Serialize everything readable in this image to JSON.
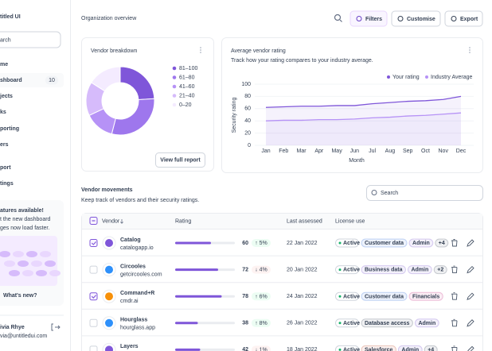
{
  "sidebar": {
    "brand": "titled UI",
    "search": "arch",
    "nav": [
      {
        "label": "me"
      },
      {
        "label": "shboard",
        "badge": "10"
      },
      {
        "label": "jects"
      },
      {
        "label": "ks"
      },
      {
        "label": "porting"
      },
      {
        "label": "ers"
      }
    ],
    "footer_nav": [
      "port",
      "tings"
    ],
    "promo": {
      "title": "atures available!",
      "lines": [
        "t the new dashboard",
        "ges now load faster."
      ],
      "link": "What's new?"
    },
    "user": {
      "name": "ivia Rhye",
      "email": "via@untitledui.com"
    }
  },
  "header": {
    "title": "Organization overview",
    "buttons": [
      "Filters",
      "Customise",
      "Export"
    ]
  },
  "vendor_breakdown": {
    "title": "Vendor breakdown",
    "button": "View full report",
    "chart": {
      "type": "pie",
      "categories": [
        "81–100",
        "61–80",
        "41–60",
        "21–40",
        "0–20"
      ],
      "values": [
        24,
        30,
        14,
        16,
        16
      ],
      "colors": [
        "#7f56d9",
        "#9e77ed",
        "#b692f6",
        "#d6bbfb",
        "#f4ebff"
      ]
    }
  },
  "rating_chart": {
    "title": "Average vendor rating",
    "subtitle": "Track how your rating compares to your industry average.",
    "chart": {
      "type": "line",
      "categories": [
        "Jan",
        "Feb",
        "Mar",
        "Apr",
        "May",
        "Jun",
        "Jul",
        "Aug",
        "Sep",
        "Oct",
        "Nov",
        "Dec"
      ],
      "series": [
        {
          "name": "Your rating",
          "color": "#7f56d9",
          "values": [
            62,
            63,
            64,
            64,
            65,
            65,
            68,
            70,
            72,
            73,
            75,
            80
          ]
        },
        {
          "name": "Industry Average",
          "color": "#b692f6",
          "values": [
            40,
            41,
            41,
            42,
            42,
            43,
            45,
            46,
            48,
            49,
            51,
            53
          ]
        }
      ],
      "ylim": [
        0,
        100
      ],
      "yticks": [
        0,
        20,
        40,
        60,
        80,
        100
      ],
      "ylabel": "Security rating",
      "xlabel": "Month",
      "grid": true
    }
  },
  "table": {
    "title": "Vendor movements",
    "subtitle": "Keep track of vendors and their security ratings.",
    "search": "Search",
    "columns": [
      "Vendor",
      "Rating",
      "Last assessed",
      "License use"
    ],
    "rows": [
      {
        "checked": true,
        "name": "Catalog",
        "domain": "catalogapp.io",
        "rating": 60,
        "change": "↑ 5%",
        "date": "22 Jan 2022",
        "status": "Active",
        "tags": [
          {
            "label": "Customer data",
            "color": "#175cd3"
          },
          {
            "label": "Admin",
            "color": "#6941c6"
          },
          {
            "label": "+4",
            "color": "#344054"
          }
        ]
      },
      {
        "checked": false,
        "name": "Circooles",
        "domain": "getcircooles.com",
        "rating": 72,
        "change": "↓ 4%",
        "date": "20 Jan 2022",
        "status": "Active",
        "tags": [
          {
            "label": "Business data",
            "color": "#6941c6"
          },
          {
            "label": "Admin",
            "color": "#6941c6"
          },
          {
            "label": "+2",
            "color": "#344054"
          }
        ]
      },
      {
        "checked": true,
        "name": "Command+R",
        "domain": "cmdr.ai",
        "rating": 78,
        "change": "↑ 6%",
        "date": "24 Jan 2022",
        "status": "Active",
        "tags": [
          {
            "label": "Customer data",
            "color": "#175cd3"
          },
          {
            "label": "Financials",
            "color": "#c11574"
          }
        ]
      },
      {
        "checked": false,
        "name": "Hourglass",
        "domain": "hourglass.app",
        "rating": 38,
        "change": "↑ 8%",
        "date": "26 Jan 2022",
        "status": "Active",
        "tags": [
          {
            "label": "Database access",
            "color": "#344054"
          },
          {
            "label": "Admin",
            "color": "#6941c6"
          }
        ]
      },
      {
        "checked": false,
        "name": "Layers",
        "domain": "",
        "rating": 42,
        "change": "↓ 1%",
        "date": "18 Jan 2022",
        "status": "Active",
        "tags": [
          {
            "label": "Salesforce",
            "color": "#b93815"
          },
          {
            "label": "Admin",
            "color": "#6941c6"
          },
          {
            "label": "+4",
            "color": "#344054"
          }
        ]
      }
    ]
  }
}
